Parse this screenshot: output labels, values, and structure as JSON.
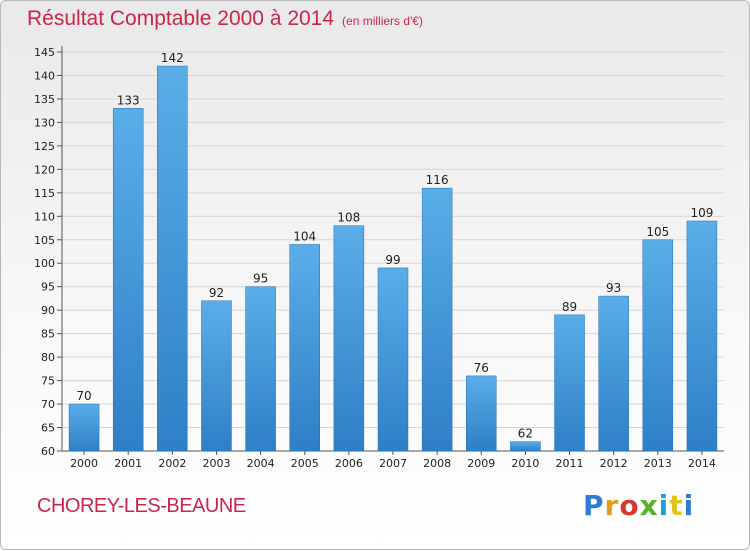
{
  "header": {
    "title": "Résultat Comptable 2000 à 2014",
    "subtitle": "(en milliers d'€)"
  },
  "commune": "CHOREY-LES-BEAUNE",
  "logo": {
    "letters": [
      "P",
      "r",
      "o",
      "x",
      "i",
      "t",
      "i"
    ]
  },
  "colors": {
    "bar_light": "#5aaee8",
    "bar_dark": "#2e7fc6",
    "title": "#c8274a"
  },
  "chart_data": {
    "type": "bar",
    "title": "Résultat Comptable 2000 à 2014",
    "subtitle": "(en milliers d'€)",
    "categories": [
      "2000",
      "2001",
      "2002",
      "2003",
      "2004",
      "2005",
      "2006",
      "2007",
      "2008",
      "2009",
      "2010",
      "2011",
      "2012",
      "2013",
      "2014"
    ],
    "values": [
      70,
      133,
      142,
      92,
      95,
      104,
      108,
      99,
      116,
      76,
      62,
      89,
      93,
      105,
      109
    ],
    "ylim": [
      60,
      145
    ],
    "yticks": [
      60,
      65,
      70,
      75,
      80,
      85,
      90,
      95,
      100,
      105,
      110,
      115,
      120,
      125,
      130,
      135,
      140,
      145
    ],
    "grid": true,
    "legend": "none"
  }
}
